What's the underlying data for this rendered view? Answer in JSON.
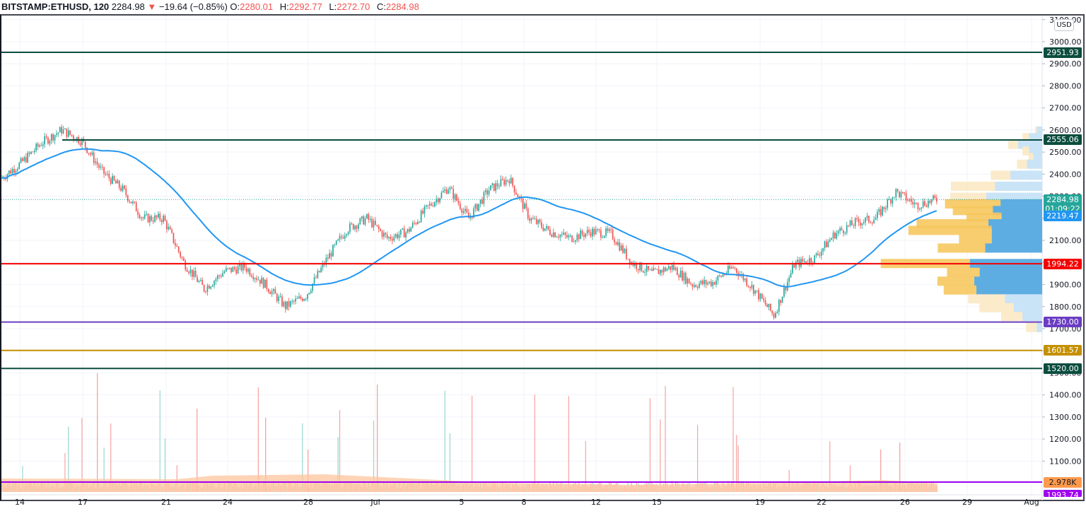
{
  "header": {
    "symbol": "BITSTAMP:ETHUSD, 120",
    "last": "2284.98",
    "change_icon": "triangle-down-icon",
    "change": "−19.64 (−0.85%)",
    "open_label": "O:",
    "open": "2280.01",
    "high_label": "H:",
    "high": "2292.77",
    "low_label": "L:",
    "low": "2272.70",
    "close_label": "C:",
    "close": "2284.98"
  },
  "currency_badge": "USD",
  "colors": {
    "up": "#26a69a",
    "down": "#ef5350",
    "ma": "#2196f3",
    "vp_up": "#5dade2",
    "vp_down": "#f6c85f",
    "vp_up_faint": "#c9e3f7",
    "vp_down_faint": "#fbe9c4"
  },
  "price_axis": {
    "ticks": [
      "3100.00",
      "3000.00",
      "2900.00",
      "2800.00",
      "2700.00",
      "2600.00",
      "2500.00",
      "2400.00",
      "2300.00",
      "2200.00",
      "2100.00",
      "2000.00",
      "1900.00",
      "1800.00",
      "1700.00",
      "1600.00",
      "1500.00",
      "1400.00",
      "1300.00",
      "1200.00",
      "1100.00"
    ]
  },
  "time_axis": {
    "ticks": [
      "14",
      "17",
      "21",
      "24",
      "28",
      "Jul",
      "5",
      "8",
      "12",
      "15",
      "19",
      "22",
      "26",
      "29",
      "Aug"
    ]
  },
  "price_tags": [
    {
      "label": "2951.93",
      "color": "#0b4d3f",
      "name": "resistance-2951"
    },
    {
      "label": "2555.06",
      "color": "#0b4d3f",
      "name": "resistance-2555"
    },
    {
      "label": "2284.98",
      "sub": "01:09:22",
      "color": "#26a69a",
      "name": "last-price"
    },
    {
      "label": "2219.47",
      "color": "#2196f3",
      "name": "ma-value"
    },
    {
      "label": "1994.22",
      "color": "#f40000",
      "name": "support-1994"
    },
    {
      "label": "1730.00",
      "color": "#6a3dc2",
      "name": "support-1730"
    },
    {
      "label": "1601.57",
      "color": "#c49000",
      "name": "support-1601"
    },
    {
      "label": "1520.00",
      "color": "#0b4d3f",
      "name": "support-1520"
    },
    {
      "label": "2.978K",
      "color": "#ff9a4d",
      "name": "volume-value"
    },
    {
      "label": "1993.74",
      "color": "#a000f0",
      "name": "volume-line-value"
    }
  ],
  "chart_data": {
    "type": "candlestick",
    "title": "BITSTAMP:ETHUSD, 120",
    "xlabel": "",
    "ylabel": "USD",
    "ylim": [
      1050,
      3120
    ],
    "x_ticks": [
      "14",
      "17",
      "21",
      "24",
      "28",
      "Jul",
      "5",
      "8",
      "12",
      "15",
      "19",
      "22",
      "26",
      "29",
      "Aug"
    ],
    "horizontal_levels": [
      2951.93,
      2555.06,
      1994.22,
      1730.0,
      1601.57,
      1520.0
    ],
    "last_price": 2284.98,
    "moving_average_last": 2219.47,
    "price_path": [
      {
        "d": "Jun 12",
        "p": 2380
      },
      {
        "d": "Jun 13",
        "p": 2450
      },
      {
        "d": "Jun 14",
        "p": 2540
      },
      {
        "d": "Jun 15",
        "p": 2600
      },
      {
        "d": "Jun 16",
        "p": 2550
      },
      {
        "d": "Jun 17",
        "p": 2410
      },
      {
        "d": "Jun 18",
        "p": 2330
      },
      {
        "d": "Jun 19",
        "p": 2200
      },
      {
        "d": "Jun 20",
        "p": 2200
      },
      {
        "d": "Jun 21",
        "p": 2000
      },
      {
        "d": "Jun 22",
        "p": 1880
      },
      {
        "d": "Jun 23",
        "p": 1960
      },
      {
        "d": "Jun 24",
        "p": 1980
      },
      {
        "d": "Jun 25",
        "p": 1900
      },
      {
        "d": "Jun 26",
        "p": 1800
      },
      {
        "d": "Jun 27",
        "p": 1850
      },
      {
        "d": "Jun 28",
        "p": 2010
      },
      {
        "d": "Jun 29",
        "p": 2150
      },
      {
        "d": "Jun 30",
        "p": 2200
      },
      {
        "d": "Jul 1",
        "p": 2110
      },
      {
        "d": "Jul 2",
        "p": 2140
      },
      {
        "d": "Jul 3",
        "p": 2250
      },
      {
        "d": "Jul 4",
        "p": 2340
      },
      {
        "d": "Jul 5",
        "p": 2200
      },
      {
        "d": "Jul 6",
        "p": 2330
      },
      {
        "d": "Jul 7",
        "p": 2380
      },
      {
        "d": "Jul 8",
        "p": 2200
      },
      {
        "d": "Jul 9",
        "p": 2140
      },
      {
        "d": "Jul 10",
        "p": 2110
      },
      {
        "d": "Jul 11",
        "p": 2140
      },
      {
        "d": "Jul 12",
        "p": 2130
      },
      {
        "d": "Jul 13",
        "p": 2000
      },
      {
        "d": "Jul 14",
        "p": 1950
      },
      {
        "d": "Jul 15",
        "p": 1980
      },
      {
        "d": "Jul 16",
        "p": 1900
      },
      {
        "d": "Jul 17",
        "p": 1910
      },
      {
        "d": "Jul 18",
        "p": 1980
      },
      {
        "d": "Jul 19",
        "p": 1880
      },
      {
        "d": "Jul 20",
        "p": 1760
      },
      {
        "d": "Jul 21",
        "p": 1990
      },
      {
        "d": "Jul 22",
        "p": 2020
      },
      {
        "d": "Jul 23",
        "p": 2130
      },
      {
        "d": "Jul 24",
        "p": 2180
      },
      {
        "d": "Jul 25",
        "p": 2200
      },
      {
        "d": "Jul 26",
        "p": 2320
      },
      {
        "d": "Jul 27",
        "p": 2260
      },
      {
        "d": "Jul 28",
        "p": 2285
      }
    ],
    "volume_profile": [
      {
        "price": 2600,
        "up": 0.05,
        "down": 0.02
      },
      {
        "price": 2570,
        "up": 0.12,
        "down": 0.08
      },
      {
        "price": 2540,
        "up": 0.22,
        "down": 0.12
      },
      {
        "price": 2510,
        "up": 0.12,
        "down": 0.08
      },
      {
        "price": 2480,
        "up": 0.08,
        "down": 0.06
      },
      {
        "price": 2450,
        "up": 0.14,
        "down": 0.12
      },
      {
        "price": 2400,
        "up": 0.29,
        "down": 0.24
      },
      {
        "price": 2350,
        "up": 0.43,
        "down": 0.54
      },
      {
        "price": 2300,
        "up": 0.51,
        "down": 0.44
      },
      {
        "price": 2270,
        "up": 0.38,
        "down": 0.68
      },
      {
        "price": 2240,
        "up": 0.45,
        "down": 0.49
      },
      {
        "price": 2210,
        "up": 0.37,
        "down": 0.43
      },
      {
        "price": 2180,
        "up": 0.49,
        "down": 0.88
      },
      {
        "price": 2150,
        "up": 0.46,
        "down": 1.02
      },
      {
        "price": 2110,
        "up": 0.46,
        "down": 0.4
      },
      {
        "price": 2070,
        "up": 0.52,
        "down": 0.58
      },
      {
        "price": 2000,
        "up": 0.66,
        "down": 1.09
      },
      {
        "price": 1960,
        "up": 0.57,
        "down": 0.4
      },
      {
        "price": 1920,
        "up": 0.62,
        "down": 0.45
      },
      {
        "price": 1880,
        "up": 0.6,
        "down": 0.4
      },
      {
        "price": 1840,
        "up": 0.34,
        "down": 0.45
      },
      {
        "price": 1800,
        "up": 0.26,
        "down": 0.42
      },
      {
        "price": 1760,
        "up": 0.18,
        "down": 0.26
      },
      {
        "price": 1710,
        "up": 0.05,
        "down": 0.13
      }
    ],
    "volume_series_last": "2.978K"
  }
}
